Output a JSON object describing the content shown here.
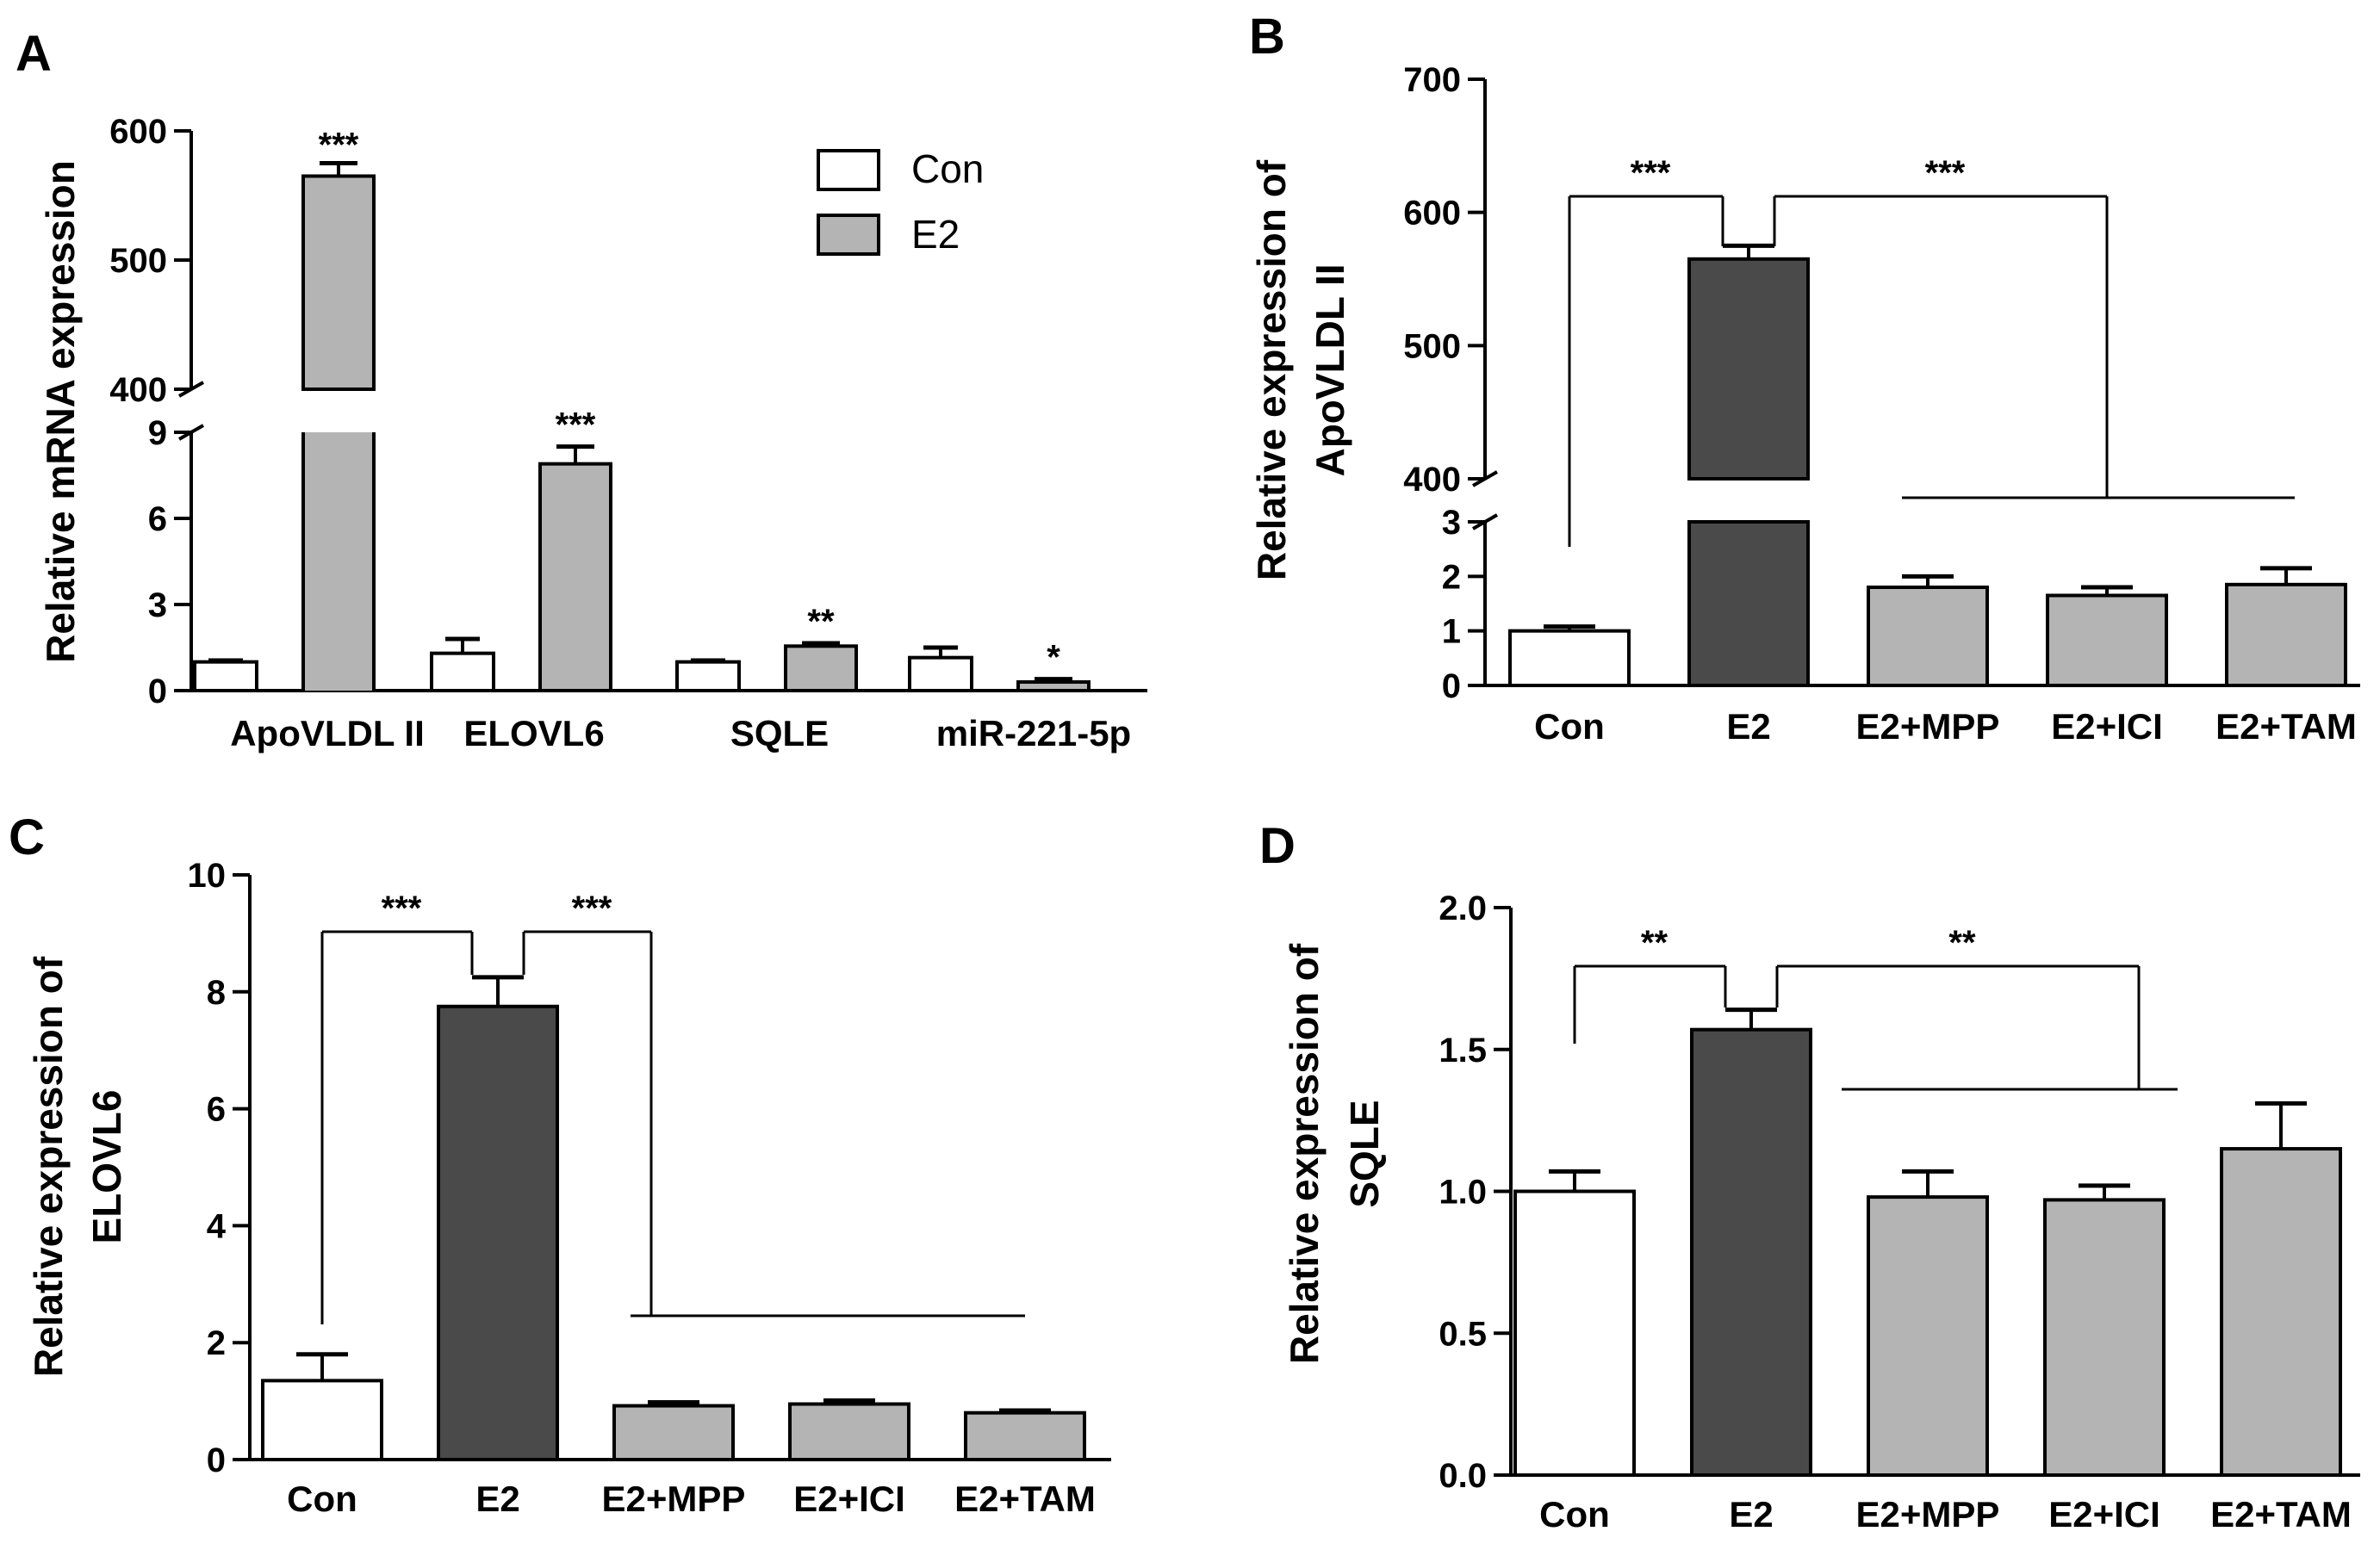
{
  "colors": {
    "con": "#ffffff",
    "e2_a": "#b4b4b4",
    "e2_dark": "#4a4a4a",
    "treat": "#b4b4b4",
    "stroke": "#000000"
  },
  "chart_data": [
    {
      "panel": "A",
      "type": "bar",
      "ylabel": "Relative mRNA expression",
      "categories": [
        "ApoVLDL II",
        "ELOVL6",
        "SQLE",
        "miR-221-5p"
      ],
      "legend": [
        "Con",
        "E2"
      ],
      "series": [
        {
          "name": "Con",
          "values": [
            1.0,
            1.3,
            1.0,
            1.15
          ],
          "errors": [
            0.05,
            0.5,
            0.05,
            0.35
          ]
        },
        {
          "name": "E2",
          "values": [
            565,
            7.9,
            1.55,
            0.3
          ],
          "errors": [
            10,
            0.6,
            0.1,
            0.1
          ]
        }
      ],
      "significance": [
        "***",
        "***",
        "**",
        "*"
      ],
      "y_break": {
        "lower": [
          0,
          9
        ],
        "upper": [
          400,
          600
        ]
      },
      "lower_ticks": [
        "0",
        "3",
        "6",
        "9"
      ],
      "upper_ticks": [
        "400",
        "500",
        "600"
      ]
    },
    {
      "panel": "B",
      "type": "bar",
      "ylabel_lines": [
        "Relative expression of",
        "ApoVLDL II"
      ],
      "categories": [
        "Con",
        "E2",
        "E2+MPP",
        "E2+ICI",
        "E2+TAM"
      ],
      "values": [
        1.0,
        565,
        1.8,
        1.65,
        1.85
      ],
      "errors": [
        0.08,
        10,
        0.2,
        0.15,
        0.3
      ],
      "y_break": {
        "lower": [
          0,
          3
        ],
        "upper": [
          400,
          700
        ]
      },
      "lower_ticks": [
        "0",
        "1",
        "2",
        "3"
      ],
      "upper_ticks": [
        "400",
        "500",
        "600",
        "700"
      ],
      "comparisons": [
        "***",
        "***"
      ]
    },
    {
      "panel": "C",
      "type": "bar",
      "ylabel_lines": [
        "Relative expression of",
        "ELOVL6"
      ],
      "categories": [
        "Con",
        "E2",
        "E2+MPP",
        "E2+ICI",
        "E2+TAM"
      ],
      "values": [
        1.35,
        7.75,
        0.92,
        0.95,
        0.8
      ],
      "errors": [
        0.45,
        0.5,
        0.06,
        0.06,
        0.04
      ],
      "ylim": [
        0,
        10
      ],
      "ticks": [
        "0",
        "2",
        "4",
        "6",
        "8",
        "10"
      ],
      "comparisons": [
        "***",
        "***"
      ]
    },
    {
      "panel": "D",
      "type": "bar",
      "ylabel_lines": [
        "Relative expression of",
        "SQLE"
      ],
      "categories": [
        "Con",
        "E2",
        "E2+MPP",
        "E2+ICI",
        "E2+TAM"
      ],
      "values": [
        1.0,
        1.57,
        0.98,
        0.97,
        1.15
      ],
      "errors": [
        0.07,
        0.07,
        0.09,
        0.05,
        0.16
      ],
      "ylim": [
        0,
        2.0
      ],
      "ticks": [
        "0.0",
        "0.5",
        "1.0",
        "1.5",
        "2.0"
      ],
      "comparisons": [
        "**",
        "**"
      ]
    }
  ]
}
